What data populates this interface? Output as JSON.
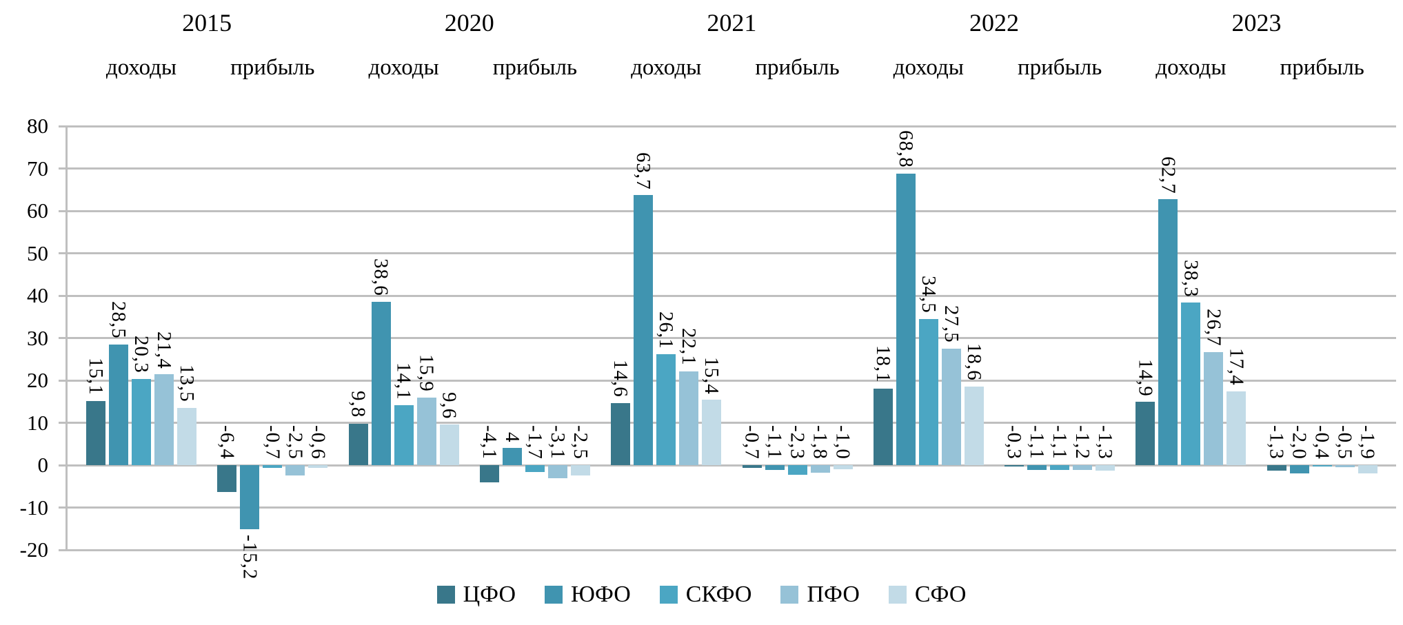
{
  "chart_data": {
    "type": "bar",
    "title": "",
    "xlabel": "",
    "ylabel": "",
    "ylim": [
      -20,
      80
    ],
    "grid": "horizontal",
    "legend_position": "bottom",
    "y_ticks": [
      80,
      70,
      60,
      50,
      40,
      30,
      20,
      10,
      0,
      -10,
      -20
    ],
    "years": [
      "2015",
      "2020",
      "2021",
      "2022",
      "2023"
    ],
    "metric_labels": [
      "доходы",
      "прибыль"
    ],
    "series": [
      {
        "name": "ЦФО",
        "color": "#39778a"
      },
      {
        "name": "ЮФО",
        "color": "#4094b0"
      },
      {
        "name": "СКФО",
        "color": "#4ba6c3"
      },
      {
        "name": "ПФО",
        "color": "#96c2d7"
      },
      {
        "name": "СФО",
        "color": "#c2dbe7"
      }
    ],
    "groups": [
      {
        "year": "2015",
        "metric": "доходы",
        "values": [
          15.1,
          28.5,
          20.3,
          21.4,
          13.5
        ],
        "labels": [
          "15,1",
          "28,5",
          "20,3",
          "21,4",
          "13,5"
        ]
      },
      {
        "year": "2015",
        "metric": "прибыль",
        "values": [
          -6.4,
          -15.2,
          -0.7,
          -2.5,
          -0.6
        ],
        "labels": [
          "-6,4",
          "-15,2",
          "-0,7",
          "-2,5",
          "-0,6"
        ]
      },
      {
        "year": "2020",
        "metric": "доходы",
        "values": [
          9.8,
          38.6,
          14.1,
          15.9,
          9.6
        ],
        "labels": [
          "9,8",
          "38,6",
          "14,1",
          "15,9",
          "9,6"
        ]
      },
      {
        "year": "2020",
        "metric": "прибыль",
        "values": [
          -4.1,
          4,
          -1.7,
          -3.1,
          -2.5
        ],
        "labels": [
          "-4,1",
          "4",
          "-1,7",
          "-3,1",
          "-2,5"
        ]
      },
      {
        "year": "2021",
        "metric": "доходы",
        "values": [
          14.6,
          63.7,
          26.1,
          22.1,
          15.4
        ],
        "labels": [
          "14,6",
          "63,7",
          "26,1",
          "22,1",
          "15,4"
        ]
      },
      {
        "year": "2021",
        "metric": "прибыль",
        "values": [
          -0.7,
          -1.1,
          -2.3,
          -1.8,
          -1.0
        ],
        "labels": [
          "-0,7",
          "-1,1",
          "-2,3",
          "-1,8",
          "-1,0"
        ]
      },
      {
        "year": "2022",
        "metric": "доходы",
        "values": [
          18.1,
          68.8,
          34.5,
          27.5,
          18.6
        ],
        "labels": [
          "18,1",
          "68,8",
          "34,5",
          "27,5",
          "18,6"
        ]
      },
      {
        "year": "2022",
        "metric": "прибыль",
        "values": [
          -0.3,
          -1.1,
          -1.1,
          -1.2,
          -1.3
        ],
        "labels": [
          "-0,3",
          "-1,1",
          "-1,1",
          "-1,2",
          "-1,3"
        ]
      },
      {
        "year": "2023",
        "metric": "доходы",
        "values": [
          14.9,
          62.7,
          38.3,
          26.7,
          17.4
        ],
        "labels": [
          "14,9",
          "62,7",
          "38,3",
          "26,7",
          "17,4"
        ]
      },
      {
        "year": "2023",
        "metric": "прибыль",
        "values": [
          -1.3,
          -2.0,
          -0.4,
          -0.5,
          -1.9
        ],
        "labels": [
          "-1,3",
          "-2,0",
          "-0,4",
          "-0,5",
          "-1,9"
        ]
      }
    ]
  }
}
